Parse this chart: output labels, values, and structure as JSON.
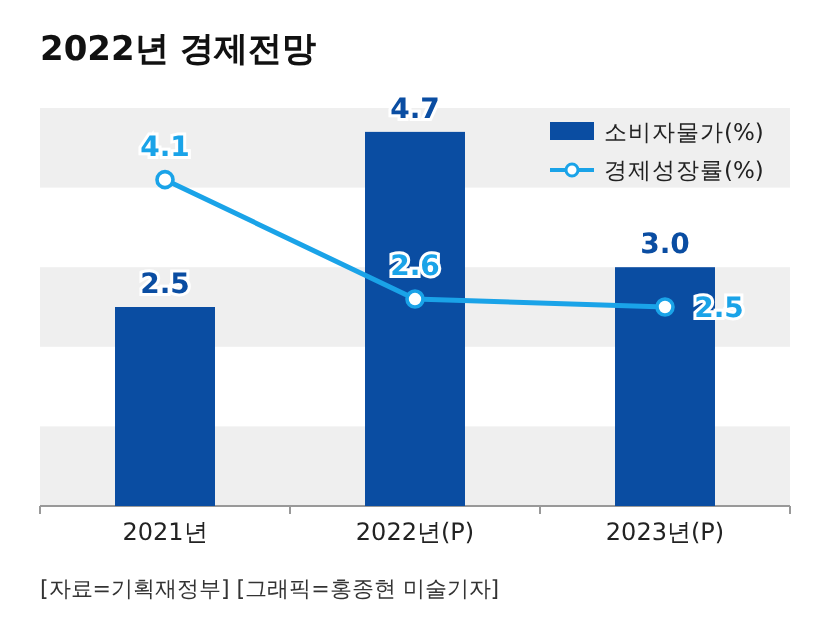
{
  "chart_data": {
    "type": "bar",
    "title": "2022년 경제전망",
    "categories": [
      "2021년",
      "2022년(P)",
      "2023년(P)"
    ],
    "series": [
      {
        "name": "소비자물가(%)",
        "color": "#0a4da2",
        "values": [
          2.5,
          4.7,
          3.0
        ],
        "value_labels": [
          "2.5",
          "4.7",
          "3.0"
        ]
      },
      {
        "name": "경제성장률(%)",
        "type": "line",
        "color": "#1aa3e8",
        "values": [
          4.1,
          2.6,
          2.5
        ],
        "value_labels": [
          "4.1",
          "2.6",
          "2.5"
        ]
      }
    ],
    "ylim": [
      0,
      5
    ],
    "tick_labels": "x",
    "legend": "top right",
    "marker": "circle",
    "bands": [
      {
        "axis": "y",
        "from": 0,
        "to": 1,
        "color": "#efefef"
      },
      {
        "axis": "y",
        "from": 2,
        "to": 3,
        "color": "#efefef"
      },
      {
        "axis": "y",
        "from": 4,
        "to": 5,
        "color": "#efefef"
      }
    ],
    "annotations": [
      "[자료=기획재정부] [그래픽=홍종현 미술기자]"
    ]
  }
}
